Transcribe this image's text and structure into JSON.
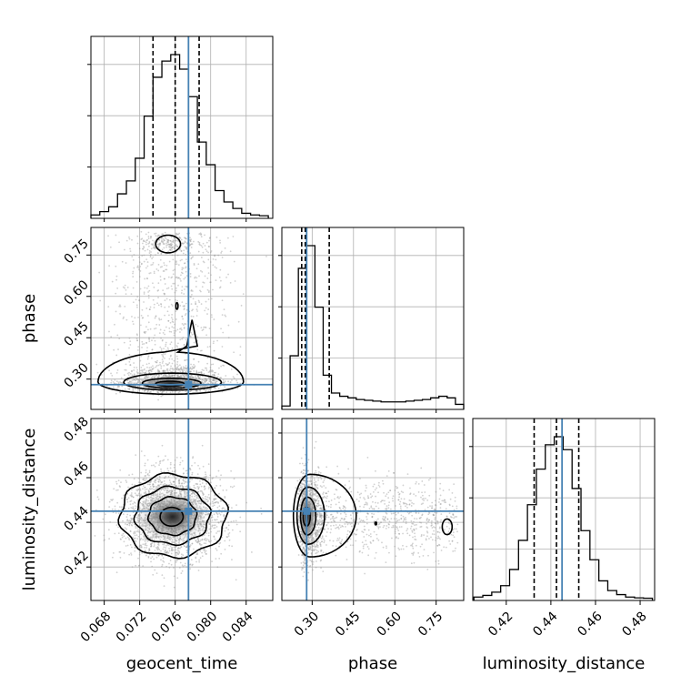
{
  "chart_data": {
    "type": "corner",
    "parameters": [
      "geocent_time",
      "phase",
      "luminosity_distance"
    ],
    "truth": {
      "geocent_time": 0.0775,
      "phase": 0.28,
      "luminosity_distance": 0.445
    },
    "quantiles": {
      "geocent_time": [
        0.0735,
        0.076,
        0.0787
      ],
      "phase": [
        0.262,
        0.275,
        0.362
      ],
      "luminosity_distance": [
        0.4325,
        0.4425,
        0.4525
      ]
    },
    "axes": {
      "geocent_time": {
        "label": "geocent_time",
        "range": [
          0.0665,
          0.087
        ],
        "ticks": [
          0.068,
          0.072,
          0.076,
          0.08,
          0.084
        ],
        "tick_labels": [
          "0.068",
          "0.072",
          "0.076",
          "0.080",
          "0.084"
        ]
      },
      "phase": {
        "label": "phase",
        "range": [
          0.19,
          0.85
        ],
        "ticks": [
          0.3,
          0.45,
          0.6,
          0.75
        ],
        "tick_labels": [
          "0.30",
          "0.45",
          "0.60",
          "0.75"
        ]
      },
      "luminosity_distance": {
        "label": "luminosity_distance",
        "range": [
          0.405,
          0.4865
        ],
        "ticks": [
          0.42,
          0.44,
          0.46,
          0.48
        ],
        "tick_labels": [
          "0.42",
          "0.44",
          "0.46",
          "0.48"
        ]
      }
    },
    "histograms": {
      "geocent_time": {
        "x": [
          0.067,
          0.068,
          0.069,
          0.07,
          0.071,
          0.072,
          0.073,
          0.074,
          0.075,
          0.076,
          0.077,
          0.078,
          0.079,
          0.08,
          0.081,
          0.082,
          0.083,
          0.084,
          0.085,
          0.086
        ],
        "density": [
          0.01,
          0.03,
          0.06,
          0.14,
          0.22,
          0.36,
          0.62,
          0.86,
          0.96,
          1.0,
          0.91,
          0.74,
          0.46,
          0.32,
          0.16,
          0.09,
          0.05,
          0.02,
          0.01,
          0.005
        ]
      },
      "phase": {
        "x": [
          0.205,
          0.235,
          0.265,
          0.295,
          0.325,
          0.355,
          0.385,
          0.415,
          0.445,
          0.475,
          0.505,
          0.535,
          0.565,
          0.595,
          0.625,
          0.655,
          0.685,
          0.715,
          0.745,
          0.775,
          0.805,
          0.835
        ],
        "density": [
          0.01,
          0.32,
          0.86,
          1.0,
          0.62,
          0.2,
          0.09,
          0.07,
          0.06,
          0.05,
          0.045,
          0.04,
          0.035,
          0.035,
          0.035,
          0.04,
          0.045,
          0.05,
          0.06,
          0.07,
          0.06,
          0.02
        ]
      },
      "luminosity_distance": {
        "x": [
          0.4075,
          0.4115,
          0.4155,
          0.4195,
          0.4235,
          0.4275,
          0.4315,
          0.4355,
          0.4395,
          0.4435,
          0.4475,
          0.4515,
          0.4555,
          0.4595,
          0.4635,
          0.4675,
          0.4715,
          0.4755,
          0.4795,
          0.4835
        ],
        "density": [
          0.01,
          0.02,
          0.04,
          0.08,
          0.18,
          0.36,
          0.58,
          0.8,
          0.95,
          1.0,
          0.92,
          0.68,
          0.42,
          0.24,
          0.11,
          0.05,
          0.025,
          0.01,
          0.005,
          0.003
        ]
      }
    },
    "contour_levels": [
      "0.5 sigma",
      "1 sigma",
      "1.5 sigma",
      "2 sigma"
    ],
    "colors": {
      "truth": "#4682b4",
      "hist": "#000000",
      "contour": "#000000",
      "grid": "#b0b0b0",
      "scatter": "#9a9a9a"
    },
    "grid": true
  }
}
